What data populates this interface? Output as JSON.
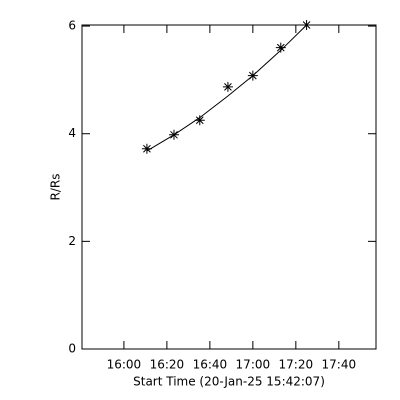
{
  "chart_data": {
    "type": "scatter",
    "x_label": "Start Time (20-Jan-25 15:42:07)",
    "y_label": "R/Rs",
    "series": [
      {
        "color": "#000000",
        "marker": "asterisk",
        "x": [
          970.7,
          983.3,
          995.3,
          1008.4,
          1020,
          1033,
          1045
        ],
        "values": [
          3.72,
          3.98,
          4.25,
          4.87,
          5.08,
          5.6,
          6.02
        ]
      },
      {
        "color": "#000000",
        "line": true,
        "x": [
          970.7,
          983.3,
          995.3,
          1008.4,
          1020,
          1033,
          1045
        ],
        "values": [
          3.68,
          3.98,
          4.3,
          4.7,
          5.08,
          5.55,
          6.02
        ]
      }
    ],
    "xlim": [
      940.5,
      1077.3
    ],
    "xticks": [
      {
        "value": 960,
        "label": "16:00"
      },
      {
        "value": 980,
        "label": "16:20"
      },
      {
        "value": 1000,
        "label": "16:40"
      },
      {
        "value": 1020,
        "label": "17:00"
      },
      {
        "value": 1040,
        "label": "17:20"
      },
      {
        "value": 1060,
        "label": "17:40"
      }
    ],
    "ylim": [
      0,
      6.02
    ],
    "yticks": [
      0,
      2,
      4,
      6
    ]
  }
}
